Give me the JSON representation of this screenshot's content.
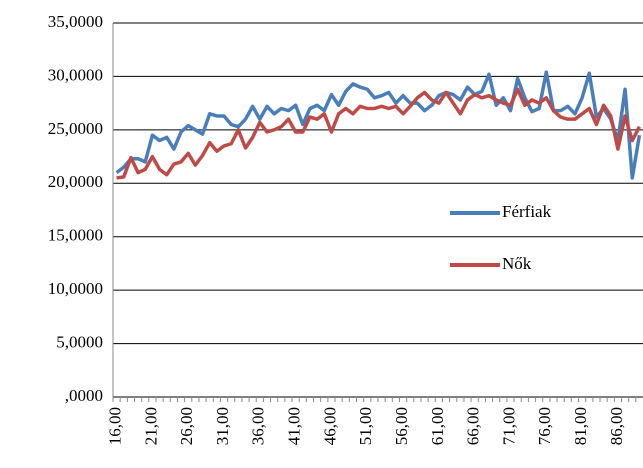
{
  "chart_data": {
    "type": "line",
    "categories": [
      "16,00",
      null,
      null,
      null,
      null,
      "21,00",
      null,
      null,
      null,
      null,
      "26,00",
      null,
      null,
      null,
      null,
      "31,00",
      null,
      null,
      null,
      null,
      "36,00",
      null,
      null,
      null,
      null,
      "41,00",
      null,
      null,
      null,
      null,
      "46,00",
      null,
      null,
      null,
      null,
      "51,00",
      null,
      null,
      null,
      null,
      "56,00",
      null,
      null,
      null,
      null,
      "61,00",
      null,
      null,
      null,
      null,
      "66,00",
      null,
      null,
      null,
      null,
      "71,00",
      null,
      null,
      null,
      null,
      "76,00",
      null,
      null,
      null,
      null,
      "81,00",
      null,
      null,
      null,
      null,
      "86,00",
      null,
      null,
      null
    ],
    "series": [
      {
        "name": "Férfiak",
        "color": "#4a7ebb",
        "values": [
          21.0,
          21.5,
          22.3,
          22.3,
          22.0,
          24.5,
          24.0,
          24.3,
          23.2,
          24.8,
          25.4,
          25.0,
          24.6,
          26.5,
          26.3,
          26.3,
          25.5,
          25.3,
          26.0,
          27.2,
          26.0,
          27.2,
          26.5,
          27.0,
          26.8,
          27.3,
          25.5,
          27.0,
          27.3,
          26.8,
          28.3,
          27.3,
          28.6,
          29.3,
          29.0,
          28.8,
          28.0,
          28.2,
          28.5,
          27.5,
          28.2,
          27.5,
          27.5,
          26.8,
          27.3,
          28.2,
          28.5,
          28.3,
          27.8,
          29.0,
          28.3,
          28.6,
          30.2,
          27.3,
          28.0,
          26.8,
          29.8,
          28.0,
          26.7,
          27.0,
          30.4,
          26.8,
          26.8,
          27.2,
          26.5,
          28.0,
          30.3,
          26.2,
          27.0,
          26.0,
          24.0,
          28.8,
          20.5,
          24.5
        ]
      },
      {
        "name": "Nők",
        "color": "#be4b48",
        "values": [
          20.5,
          20.6,
          22.4,
          21.0,
          21.3,
          22.5,
          21.3,
          20.8,
          21.8,
          22.0,
          22.8,
          21.7,
          22.6,
          23.8,
          23.0,
          23.5,
          23.7,
          25.0,
          23.3,
          24.3,
          25.7,
          24.8,
          25.0,
          25.3,
          26.0,
          24.8,
          24.8,
          26.2,
          26.0,
          26.5,
          24.8,
          26.5,
          27.0,
          26.5,
          27.2,
          27.0,
          27.0,
          27.2,
          27.0,
          27.2,
          26.5,
          27.2,
          28.0,
          28.5,
          27.8,
          27.5,
          28.5,
          27.5,
          26.5,
          27.8,
          28.3,
          28.0,
          28.2,
          27.8,
          27.5,
          27.3,
          28.8,
          27.3,
          27.8,
          27.5,
          28.0,
          26.8,
          26.2,
          26.0,
          26.0,
          26.5,
          27.0,
          25.5,
          27.3,
          26.3,
          23.2,
          26.3,
          24.0,
          25.3
        ]
      }
    ],
    "ylim": [
      0,
      35
    ],
    "yticks": [
      {
        "value": 0,
        "label": ",0000"
      },
      {
        "value": 5,
        "label": "5,0000"
      },
      {
        "value": 10,
        "label": "10,0000"
      },
      {
        "value": 15,
        "label": "15,0000"
      },
      {
        "value": 20,
        "label": "20,0000"
      },
      {
        "value": 25,
        "label": "25,0000"
      },
      {
        "value": 30,
        "label": "30,0000"
      },
      {
        "value": 35,
        "label": "35,0000"
      }
    ],
    "grid": true
  }
}
